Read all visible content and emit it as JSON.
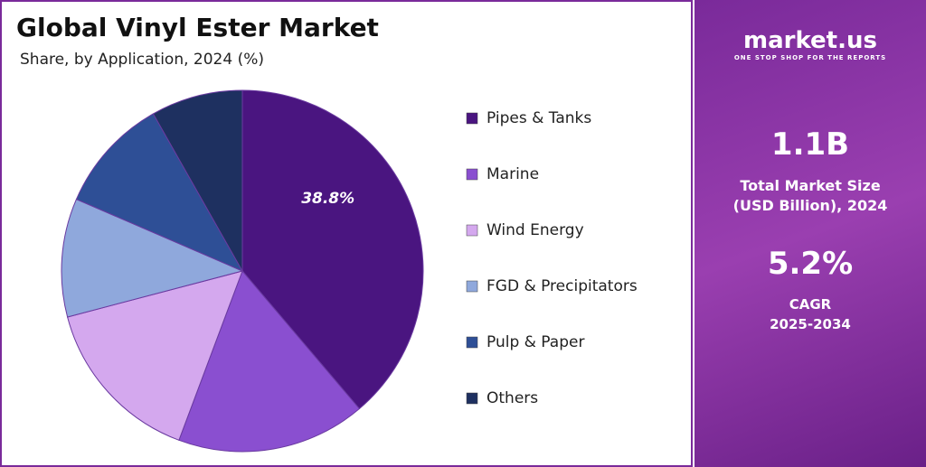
{
  "chart_data": {
    "type": "pie",
    "title": "Global Vinyl Ester Market",
    "subtitle": "Share, by Application, 2024 (%)",
    "categories": [
      "Pipes & Tanks",
      "Marine",
      "Wind Energy",
      "FGD & Precipitators",
      "Pulp & Paper",
      "Others"
    ],
    "values": [
      38.8,
      16.9,
      15.2,
      10.6,
      10.3,
      8.2
    ],
    "value_labels": [
      "38.8%",
      null,
      null,
      null,
      null,
      null
    ],
    "colors": [
      "#4a1580",
      "#8a4fd0",
      "#d4a8ee",
      "#8fa8dc",
      "#2e4f96",
      "#1e3060"
    ]
  },
  "panel": {
    "brand": "market.us",
    "tagline": "ONE STOP SHOP FOR THE REPORTS",
    "market_size": "1.1B",
    "market_size_label": "Total Market Size (USD Billion), 2024",
    "cagr": "5.2%",
    "cagr_label": "CAGR",
    "cagr_period": "2025-2034"
  }
}
